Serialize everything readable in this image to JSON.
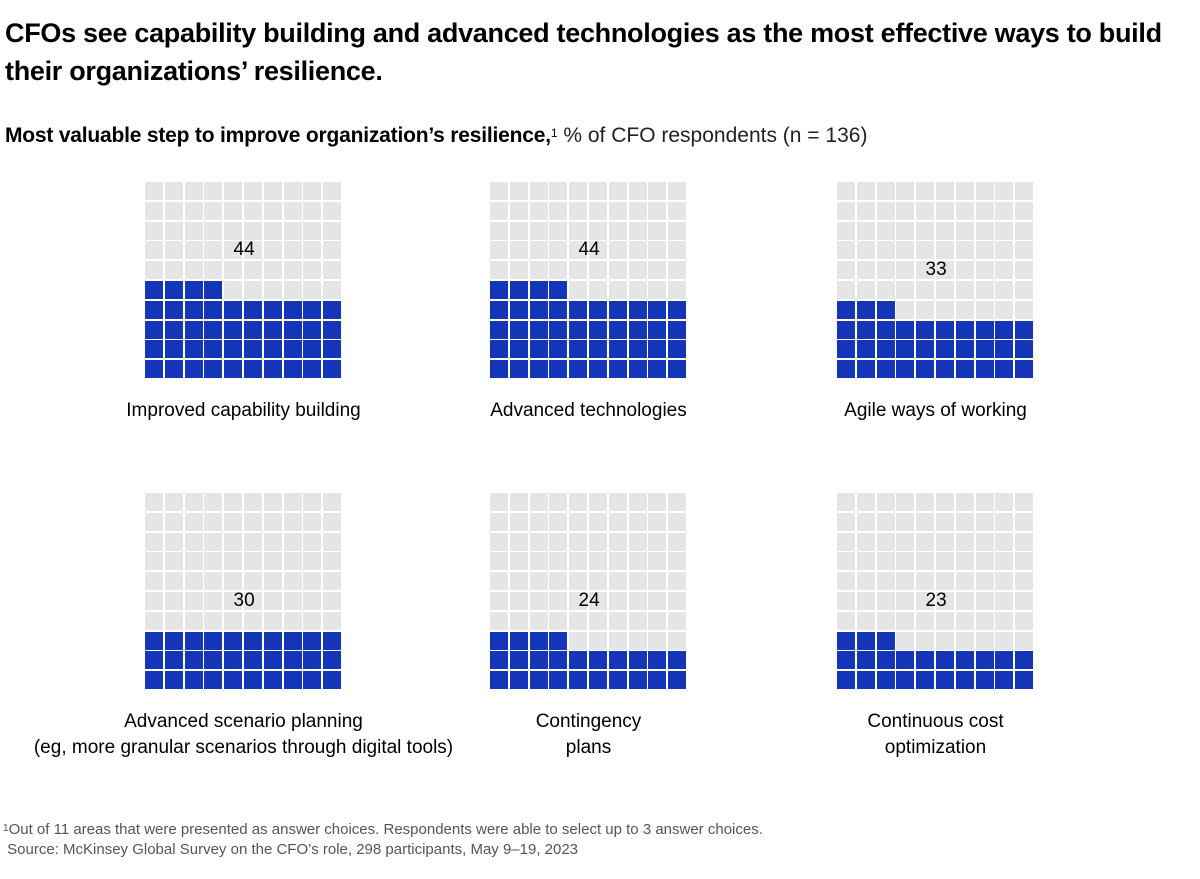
{
  "header": {
    "title": "CFOs see capability building and advanced technologies as the most effective ways to build their organizations’ resilience.",
    "subtitle_bold": "Most valuable step to improve organization’s resilience,",
    "subtitle_sup": "1",
    "subtitle_light": " % of CFO respondents (n = 136)"
  },
  "chart_data": {
    "type": "waffle",
    "title": "Most valuable step to improve organization’s resilience, % of CFO respondents (n = 136)",
    "unit": "% of CFO respondents",
    "grid": {
      "rows": 10,
      "cols": 10,
      "fill_from": "bottom-left"
    },
    "colors": {
      "filled": "#1535b8",
      "empty": "#e5e5e5"
    },
    "categories": [
      "Improved capability building",
      "Advanced technologies",
      "Agile ways of working",
      "Advanced scenario planning (eg, more granular scenarios through digital tools)",
      "Contingency plans",
      "Continuous cost optimization"
    ],
    "values": [
      44,
      44,
      33,
      30,
      24,
      23
    ],
    "panels": [
      {
        "value": 44,
        "label_lines": [
          "Improved capability building"
        ]
      },
      {
        "value": 44,
        "label_lines": [
          "Advanced technologies"
        ]
      },
      {
        "value": 33,
        "label_lines": [
          "Agile ways of working"
        ]
      },
      {
        "value": 30,
        "label_lines": [
          "Advanced scenario planning",
          "(eg, more granular scenarios through digital tools)"
        ]
      },
      {
        "value": 24,
        "label_lines": [
          "Contingency",
          "plans"
        ]
      },
      {
        "value": 23,
        "label_lines": [
          "Continuous cost",
          "optimization"
        ]
      }
    ]
  },
  "footnote": {
    "sup": "1",
    "line1": "Out of 11 areas that were presented as answer choices. Respondents were able to select up to 3 answer choices.",
    "line2": "Source: McKinsey Global Survey on the CFO’s role, 298 participants, May 9–19, 2023"
  }
}
